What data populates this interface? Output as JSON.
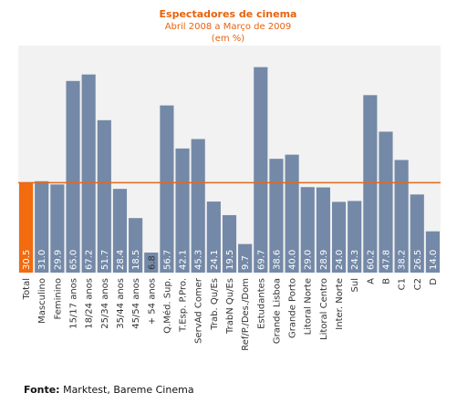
{
  "header": {
    "title": "Espectadores de cinema",
    "subtitle": "Abril 2008 a Março de 2009",
    "unit": "(em %)"
  },
  "source": {
    "label": "Fonte:",
    "text": " Marktest, Bareme Cinema"
  },
  "colors": {
    "bar": "#7489a7",
    "highlight": "#f26b0f",
    "reference_line": "#e26a1d",
    "plot_background": "#f2f2f2",
    "title": "#e8620c"
  },
  "chart_data": {
    "type": "bar",
    "categories": [
      "Total",
      "Masculino",
      "Feminino",
      "15/17 anos",
      "18/24 anos",
      "25/34 anos",
      "35/44 anos",
      "45/54 anos",
      "+ 54 anos",
      "Q.Méd. Sup.",
      "T.Esp. P.Pro.",
      "ServAd Comer",
      "Trab. Qu/Es",
      "TrabN Qu/Es",
      "Ref/P./Des./Dom",
      "Estudantes",
      "Grande Lisboa",
      "Grande Porto",
      "Litoral Norte",
      "Litoral Centro",
      "Inter. Norte",
      "Sul",
      "A",
      "B",
      "C1",
      "C2",
      "D"
    ],
    "values": [
      30.5,
      31.0,
      29.9,
      65.0,
      67.2,
      51.7,
      28.4,
      18.5,
      6.8,
      56.7,
      42.1,
      45.3,
      24.1,
      19.5,
      9.7,
      69.7,
      38.6,
      40.0,
      29.0,
      28.9,
      24.0,
      24.3,
      60.2,
      47.8,
      38.2,
      26.5,
      14.0
    ],
    "value_labels": [
      "30.5",
      "31.0",
      "29.9",
      "65.0",
      "67.2",
      "51.7",
      "28.4",
      "18.5",
      "6.8",
      "56.7",
      "42.1",
      "45.3",
      "24.1",
      "19.5",
      "9.7",
      "69.7",
      "38.6",
      "40.0",
      "29.0",
      "28.9",
      "24.0",
      "24.3",
      "60.2",
      "47.8",
      "38.2",
      "26.5",
      "14.0"
    ],
    "highlight_index": 0,
    "reference_value": 30.5,
    "ylim": [
      0,
      77
    ],
    "grid": false,
    "legend": "none"
  }
}
